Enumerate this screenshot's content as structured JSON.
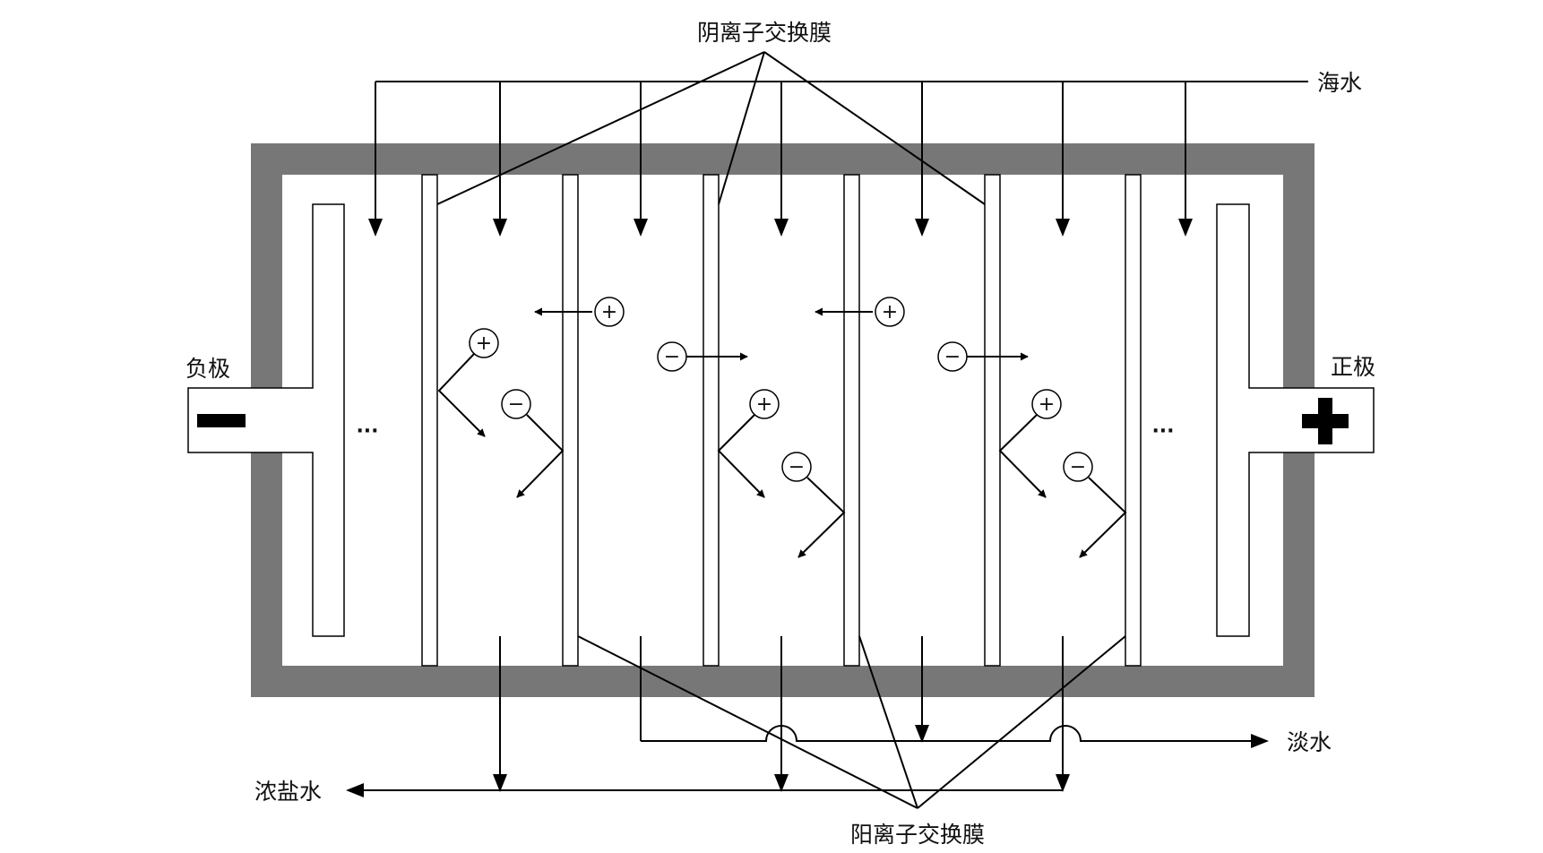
{
  "labels": {
    "anion_membrane": "阴离子交换膜",
    "cation_membrane": "阳离子交换膜",
    "seawater": "海水",
    "fresh_water": "淡水",
    "brine": "浓盐水",
    "cathode": "负极",
    "anode": "正极",
    "ellipsis": "···"
  },
  "ions": {
    "positive": "+",
    "negative": "−"
  },
  "colors": {
    "casing": "#777777",
    "line": "#000000",
    "background": "#ffffff"
  },
  "icons": {
    "cathode_symbol": "minus-sign",
    "anode_symbol": "plus-sign"
  }
}
